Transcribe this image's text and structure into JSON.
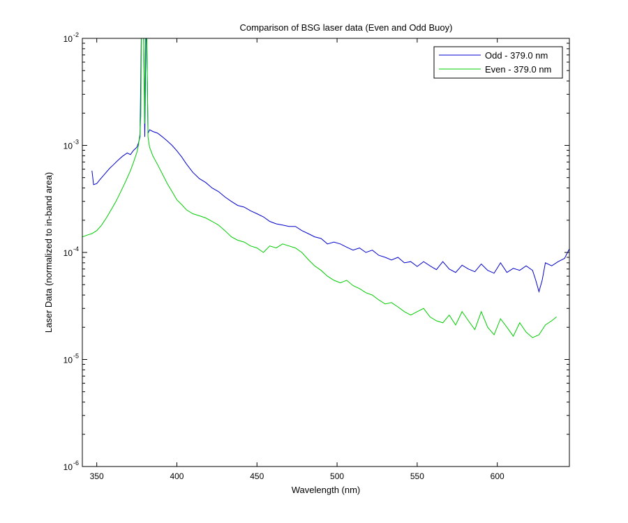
{
  "chart_data": {
    "type": "line",
    "title": "Comparison of BSG laser data (Even and Odd Buoy)",
    "xlabel": "Wavelength (nm)",
    "ylabel": "Laser Data (normalized to in-band area)",
    "xlim": [
      341,
      645
    ],
    "ylim": [
      1e-06,
      0.01
    ],
    "yscale": "log",
    "xticks": [
      350,
      400,
      450,
      500,
      550,
      600
    ],
    "yticks": [
      {
        "value": 0.01,
        "base": "10",
        "exp": "-2"
      },
      {
        "value": 0.001,
        "base": "10",
        "exp": "-3"
      },
      {
        "value": 0.0001,
        "base": "10",
        "exp": "-4"
      },
      {
        "value": 1e-05,
        "base": "10",
        "exp": "-5"
      },
      {
        "value": 1e-06,
        "base": "10",
        "exp": "-6"
      }
    ],
    "grid": false,
    "legend_position": "top-right",
    "series": [
      {
        "name": "Odd - 379.0 nm",
        "color": "#0000cc",
        "x": [
          347,
          348,
          350,
          352,
          355,
          358,
          360,
          363,
          366,
          369,
          371,
          373,
          375,
          376,
          377,
          378,
          379,
          380,
          381,
          382,
          383,
          385,
          388,
          391,
          394,
          397,
          400,
          403,
          406,
          410,
          414,
          418,
          422,
          426,
          430,
          434,
          438,
          442,
          446,
          450,
          454,
          458,
          462,
          466,
          470,
          474,
          478,
          482,
          486,
          490,
          494,
          498,
          502,
          506,
          510,
          514,
          518,
          522,
          526,
          530,
          534,
          538,
          542,
          546,
          550,
          554,
          558,
          562,
          566,
          570,
          574,
          578,
          582,
          586,
          590,
          594,
          598,
          602,
          606,
          610,
          614,
          618,
          622,
          624,
          626,
          628,
          630,
          634,
          638,
          642,
          645
        ],
        "y": [
          0.00058,
          0.00043,
          0.00044,
          0.00048,
          0.00054,
          0.00061,
          0.00065,
          0.00072,
          0.00079,
          0.00085,
          0.00082,
          0.0009,
          0.00096,
          0.00105,
          0.0012,
          0.02,
          0.02,
          0.0012,
          0.02,
          0.0013,
          0.0014,
          0.00135,
          0.0013,
          0.0012,
          0.0011,
          0.001,
          0.00089,
          0.00078,
          0.00067,
          0.00056,
          0.00049,
          0.00045,
          0.0004,
          0.00037,
          0.00033,
          0.0003,
          0.000275,
          0.000265,
          0.000245,
          0.00023,
          0.000215,
          0.000195,
          0.000185,
          0.00018,
          0.000175,
          0.000175,
          0.00016,
          0.00015,
          0.00014,
          0.000135,
          0.00012,
          0.000125,
          0.00012,
          0.000112,
          0.000105,
          0.00011,
          0.0001,
          0.000105,
          9.4e-05,
          9e-05,
          8.5e-05,
          9e-05,
          8e-05,
          8.2e-05,
          7.4e-05,
          8.2e-05,
          7.5e-05,
          6.9e-05,
          8.2e-05,
          7e-05,
          6.5e-05,
          7.6e-05,
          7e-05,
          6.6e-05,
          7.8e-05,
          6.8e-05,
          6.4e-05,
          8e-05,
          6.5e-05,
          7.1e-05,
          6.8e-05,
          7.5e-05,
          6.8e-05,
          5.5e-05,
          4.3e-05,
          5.5e-05,
          8e-05,
          7.5e-05,
          8.2e-05,
          8.8e-05,
          0.000108
        ]
      },
      {
        "name": "Even - 379.0 nm",
        "color": "#00cc00",
        "x": [
          341,
          344,
          347,
          350,
          353,
          356,
          359,
          362,
          365,
          368,
          371,
          373,
          375,
          376,
          377,
          377.5,
          378,
          379,
          380,
          380.5,
          381,
          382,
          383,
          385,
          388,
          391,
          394,
          397,
          400,
          403,
          406,
          410,
          414,
          418,
          422,
          426,
          430,
          434,
          438,
          442,
          446,
          450,
          454,
          458,
          462,
          466,
          470,
          474,
          478,
          482,
          486,
          490,
          494,
          498,
          502,
          506,
          510,
          514,
          518,
          522,
          526,
          530,
          534,
          538,
          542,
          546,
          550,
          554,
          558,
          562,
          566,
          570,
          574,
          578,
          582,
          586,
          590,
          594,
          598,
          602,
          606,
          610,
          614,
          618,
          622,
          626,
          630,
          634,
          637
        ],
        "y": [
          0.00014,
          0.000145,
          0.00015,
          0.00016,
          0.00018,
          0.00021,
          0.00025,
          0.0003,
          0.00037,
          0.00046,
          0.00058,
          0.0007,
          0.00086,
          0.001,
          0.0013,
          0.0019,
          0.02,
          0.02,
          0.0016,
          0.02,
          0.02,
          0.0012,
          0.00096,
          0.0008,
          0.00066,
          0.00054,
          0.00044,
          0.00037,
          0.00031,
          0.00028,
          0.00025,
          0.00023,
          0.00022,
          0.00021,
          0.000195,
          0.00018,
          0.00016,
          0.00014,
          0.00013,
          0.000125,
          0.000115,
          0.00011,
          0.0001,
          0.000115,
          0.00011,
          0.00012,
          0.000115,
          0.00011,
          0.0001,
          8.6e-05,
          7.5e-05,
          6.8e-05,
          6e-05,
          5.5e-05,
          5.2e-05,
          5.5e-05,
          4.9e-05,
          4.6e-05,
          4.2e-05,
          4e-05,
          3.6e-05,
          3.3e-05,
          3.4e-05,
          3.1e-05,
          2.8e-05,
          2.6e-05,
          2.8e-05,
          3e-05,
          2.5e-05,
          2.3e-05,
          2.2e-05,
          2.6e-05,
          2.1e-05,
          2.8e-05,
          2.3e-05,
          1.9e-05,
          2.8e-05,
          2e-05,
          1.7e-05,
          2.4e-05,
          2e-05,
          1.65e-05,
          2.2e-05,
          1.8e-05,
          1.6e-05,
          1.7e-05,
          2.1e-05,
          2.3e-05,
          2.5e-05
        ]
      }
    ]
  }
}
